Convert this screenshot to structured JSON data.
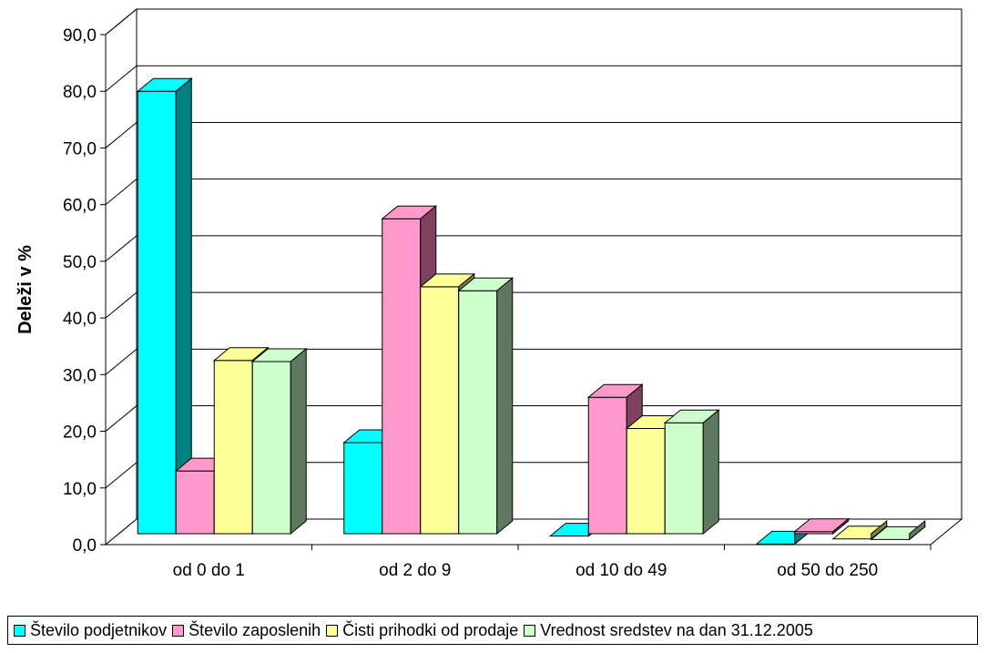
{
  "chart_data": {
    "type": "bar",
    "title": "",
    "xlabel": "",
    "ylabel": "Deleži v %",
    "ylim": [
      0,
      90
    ],
    "yticks": [
      "0,0",
      "10,0",
      "20,0",
      "30,0",
      "40,0",
      "50,0",
      "60,0",
      "70,0",
      "80,0",
      "90,0"
    ],
    "categories": [
      "od 0 do 1",
      "od 2 do 9",
      "od 10 do 49",
      "od 50 do 250"
    ],
    "grid": true,
    "legend_position": "bottom",
    "series": [
      {
        "name": "Število podjetnikov",
        "color": "#00FFFF",
        "side_color": "#008080",
        "values": [
          80.0,
          18.0,
          1.5,
          0.1
        ]
      },
      {
        "name": "Število zaposlenih",
        "color": "#FF99CC",
        "side_color": "#804060",
        "values": [
          13.0,
          57.5,
          26.0,
          2.3
        ]
      },
      {
        "name": "Čisti prihodki od prodaje",
        "color": "#FFFF99",
        "side_color": "#808040",
        "values": [
          32.5,
          45.5,
          20.5,
          1.0
        ]
      },
      {
        "name": "Vrednost sredstev na dan 31.12.2005",
        "color": "#CCFFCC",
        "side_color": "#607860",
        "values": [
          32.3,
          44.8,
          21.5,
          0.9
        ]
      }
    ]
  }
}
